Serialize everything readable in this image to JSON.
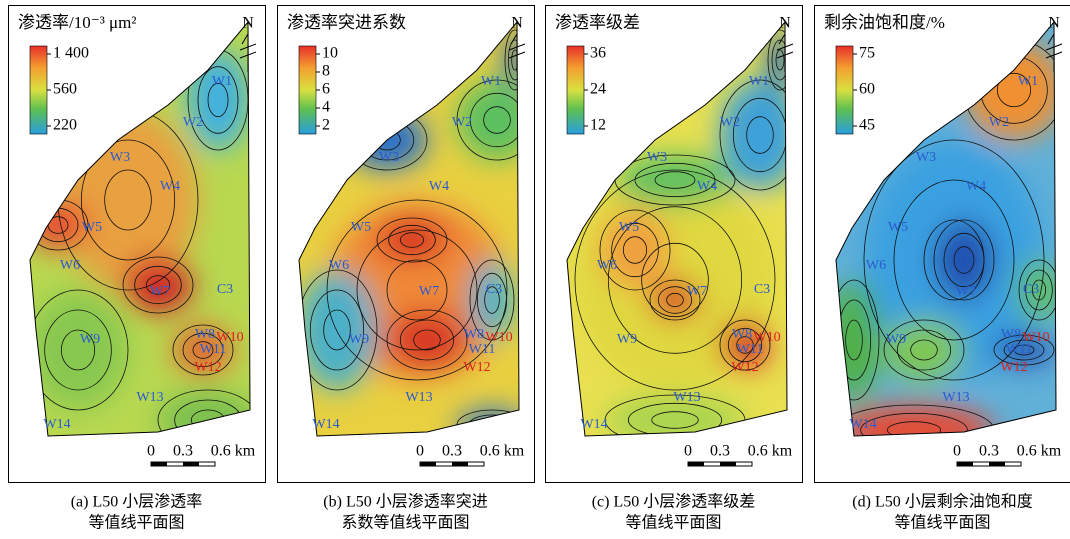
{
  "panels": [
    {
      "title": "渗透率/10⁻³ μm²",
      "colorbar": [
        "1 400",
        "560",
        "220"
      ],
      "north": "N",
      "scale": [
        "0",
        "0.3",
        "0.6 km"
      ],
      "caption": [
        "(a) L50 小层渗透率",
        "等值线平面图"
      ]
    },
    {
      "title": "渗透率突进系数",
      "colorbar": [
        "10",
        "8",
        "6",
        "4",
        "2"
      ],
      "north": "N",
      "scale": [
        "0",
        "0.3",
        "0.6 km"
      ],
      "caption": [
        "(b) L50 小层渗透率突进",
        "系数等值线平面图"
      ]
    },
    {
      "title": "渗透率级差",
      "colorbar": [
        "36",
        "24",
        "12"
      ],
      "north": "N",
      "scale": [
        "0",
        "0.3",
        "0.6 km"
      ],
      "caption": [
        "(c) L50 小层渗透率级差",
        "等值线平面图"
      ]
    },
    {
      "title": "剩余油饱和度/%",
      "colorbar": [
        "75",
        "60",
        "45"
      ],
      "north": "N",
      "scale": [
        "0",
        "0.3",
        "0.6 km"
      ],
      "caption": [
        "(d) L50 小层剩余油饱和度",
        "等值线平面图"
      ]
    }
  ],
  "wells": [
    "W1",
    "W2",
    "W3",
    "W4",
    "W5",
    "W6",
    "W7",
    "C3",
    "W8",
    "W10",
    "W11",
    "W12",
    "W9",
    "W13",
    "W14"
  ]
}
